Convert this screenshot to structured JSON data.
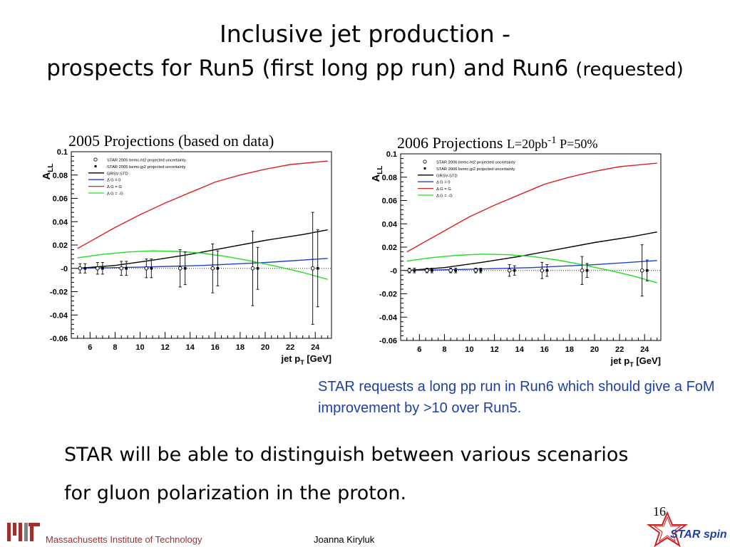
{
  "slide": {
    "title_line1": "Inclusive jet production -",
    "title_line2": "prospects for Run5 (first long pp run) and Run6",
    "title_line2_small": "(requested)",
    "note": "STAR requests a long pp run in Run6 which should give a FoM improvement by >10 over Run5.",
    "conclusion_line1": "STAR will be able to distinguish between various scenarios",
    "conclusion_line2": "for gluon polarization in the proton.",
    "page_number": "16",
    "footer_institute": "Massachusetts Institute of Technology",
    "footer_author": "Joanna Kiryluk",
    "logo_text": "STAR spin",
    "colors": {
      "note": "#1f3fa6",
      "footer_institute": "#a03030",
      "std": "#000000",
      "g0": "#1f3fd6",
      "gplus": "#e02020",
      "gminus": "#20e020"
    }
  },
  "panels": [
    {
      "caption": "2005 Projections (based on data)",
      "caption_sub": ""
    },
    {
      "caption": "2006 Projections",
      "caption_sub": "L=20pb-1 P=50%"
    }
  ],
  "chart_data": [
    {
      "type": "line",
      "title": "2005 Projections (based on data)",
      "ylabel": "A_LL",
      "xlabel": "jet p_T [GeV]",
      "xlim": [
        4.5,
        25.3
      ],
      "ylim": [
        -0.06,
        0.1
      ],
      "xticks": [
        6,
        8,
        10,
        12,
        14,
        16,
        18,
        20,
        22,
        24
      ],
      "yticks": [
        -0.06,
        -0.04,
        -0.02,
        0,
        0.02,
        0.04,
        0.06,
        0.08,
        0.1
      ],
      "ytick_labels": [
        "-0.06",
        "-0.04",
        "-0.02",
        "-0",
        "0.02",
        "0.04",
        "0.06",
        "0.08",
        "0.1"
      ],
      "legend": {
        "placement": "top-left",
        "entries": [
          {
            "label": "STAR 2005 bemc-ht2 projected uncertainty",
            "kind": "open-marker"
          },
          {
            "label": "STAR 2005 bemc-jp2 projected uncertainty",
            "kind": "filled-marker"
          },
          {
            "label": "GRSV-STD",
            "kind": "line",
            "color": "#000000"
          },
          {
            "label": "Δ G = 0",
            "kind": "line",
            "color": "#1f3fd6"
          },
          {
            "label": "Δ G = G",
            "kind": "line",
            "color": "#e02020"
          },
          {
            "label": "Δ G = -G",
            "kind": "line",
            "color": "#20e020"
          }
        ]
      },
      "series": [
        {
          "name": "GRSV-STD",
          "color": "#000000",
          "x": [
            5,
            8,
            11,
            14,
            17,
            20,
            23,
            25
          ],
          "y": [
            0.0,
            0.0025,
            0.007,
            0.012,
            0.018,
            0.024,
            0.029,
            0.033
          ]
        },
        {
          "name": "Δ G = 0",
          "color": "#1f3fd6",
          "x": [
            5,
            10,
            15,
            20,
            25
          ],
          "y": [
            0.0,
            0.001,
            0.0025,
            0.005,
            0.0085
          ]
        },
        {
          "name": "Δ G = G",
          "color": "#e02020",
          "x": [
            5,
            8,
            10,
            12,
            14,
            16,
            18,
            20,
            22,
            25
          ],
          "y": [
            0.017,
            0.035,
            0.046,
            0.056,
            0.065,
            0.074,
            0.08,
            0.085,
            0.089,
            0.092
          ]
        },
        {
          "name": "Δ G = -G",
          "color": "#20e020",
          "x": [
            5,
            7,
            9,
            11,
            13,
            15,
            17,
            19,
            21,
            23,
            25
          ],
          "y": [
            0.009,
            0.012,
            0.014,
            0.015,
            0.0145,
            0.013,
            0.01,
            0.006,
            0.0015,
            -0.0035,
            -0.0095
          ]
        }
      ],
      "points_open": [
        {
          "x": 5.2,
          "y": 0.0,
          "err": 0.004
        },
        {
          "x": 6.6,
          "y": 0.0,
          "err": 0.005
        },
        {
          "x": 8.5,
          "y": 0.0,
          "err": 0.006
        },
        {
          "x": 10.5,
          "y": 0.0,
          "err": 0.008
        },
        {
          "x": 13.2,
          "y": 0.0,
          "err": 0.016
        },
        {
          "x": 15.8,
          "y": 0.0,
          "err": 0.021
        },
        {
          "x": 19.0,
          "y": 0.0,
          "err": 0.032
        },
        {
          "x": 23.8,
          "y": 0.0,
          "err": 0.048
        }
      ],
      "points_filled": [
        {
          "x": 5.6,
          "y": 0.0,
          "err": 0.004
        },
        {
          "x": 7.0,
          "y": 0.0,
          "err": 0.005
        },
        {
          "x": 8.9,
          "y": 0.0,
          "err": 0.006
        },
        {
          "x": 10.9,
          "y": 0.0,
          "err": 0.008
        },
        {
          "x": 13.6,
          "y": 0.0,
          "err": 0.014
        },
        {
          "x": 16.2,
          "y": 0.0,
          "err": 0.015
        },
        {
          "x": 19.4,
          "y": 0.0,
          "err": 0.018
        },
        {
          "x": 24.2,
          "y": 0.0,
          "err": 0.033
        }
      ],
      "zero_line": "dotted"
    },
    {
      "type": "line",
      "title": "2006 Projections",
      "ylabel": "A_LL",
      "xlabel": "jet p_T [GeV]",
      "xlim": [
        4.5,
        25.3
      ],
      "ylim": [
        -0.06,
        0.1
      ],
      "xticks": [
        6,
        8,
        10,
        12,
        14,
        16,
        18,
        20,
        22,
        24
      ],
      "yticks": [
        -0.06,
        -0.04,
        -0.02,
        0,
        0.02,
        0.04,
        0.06,
        0.08,
        0.1
      ],
      "ytick_labels": [
        "-0.06",
        "-0.04",
        "-0.02",
        "-0",
        "0.02",
        "0.04",
        "0.06",
        "0.08",
        "0.1"
      ],
      "legend": {
        "placement": "top-left",
        "entries": [
          {
            "label": "STAR 2006 bemc-ht2 projected uncertainty",
            "kind": "open-marker"
          },
          {
            "label": "STAR 2006 bemc-jp2 projected uncertainty",
            "kind": "filled-marker"
          },
          {
            "label": "GRSV-STD",
            "kind": "line",
            "color": "#000000"
          },
          {
            "label": "Δ G = 0",
            "kind": "line",
            "color": "#1f3fd6"
          },
          {
            "label": "Δ G = G",
            "kind": "line",
            "color": "#e02020"
          },
          {
            "label": "Δ G = -G",
            "kind": "line",
            "color": "#20e020"
          }
        ]
      },
      "series": [
        {
          "name": "GRSV-STD",
          "color": "#000000",
          "x": [
            5,
            8,
            11,
            14,
            17,
            20,
            23,
            25
          ],
          "y": [
            0.0,
            0.0025,
            0.007,
            0.012,
            0.018,
            0.024,
            0.029,
            0.033
          ]
        },
        {
          "name": "Δ G = 0",
          "color": "#1f3fd6",
          "x": [
            5,
            10,
            15,
            20,
            25
          ],
          "y": [
            0.0,
            0.001,
            0.0025,
            0.005,
            0.0085
          ]
        },
        {
          "name": "Δ G = G",
          "color": "#e02020",
          "x": [
            5,
            8,
            10,
            12,
            14,
            16,
            18,
            20,
            22,
            25
          ],
          "y": [
            0.016,
            0.034,
            0.046,
            0.056,
            0.065,
            0.074,
            0.08,
            0.085,
            0.089,
            0.092
          ]
        },
        {
          "name": "Δ G = -G",
          "color": "#20e020",
          "x": [
            5,
            7,
            9,
            11,
            13,
            15,
            17,
            19,
            21,
            23,
            25
          ],
          "y": [
            0.008,
            0.011,
            0.013,
            0.014,
            0.0135,
            0.012,
            0.009,
            0.005,
            0.0005,
            -0.0045,
            -0.0105
          ]
        }
      ],
      "points_open": [
        {
          "x": 5.2,
          "y": 0.0,
          "err": 0.002
        },
        {
          "x": 6.6,
          "y": 0.0,
          "err": 0.002
        },
        {
          "x": 8.5,
          "y": 0.0,
          "err": 0.002
        },
        {
          "x": 10.5,
          "y": 0.0,
          "err": 0.002
        },
        {
          "x": 13.2,
          "y": 0.0,
          "err": 0.005
        },
        {
          "x": 15.8,
          "y": 0.0,
          "err": 0.007
        },
        {
          "x": 19.0,
          "y": 0.0,
          "err": 0.012
        },
        {
          "x": 23.8,
          "y": 0.0,
          "err": 0.022
        }
      ],
      "points_filled": [
        {
          "x": 5.6,
          "y": 0.0,
          "err": 0.002
        },
        {
          "x": 7.0,
          "y": 0.0,
          "err": 0.002
        },
        {
          "x": 8.9,
          "y": 0.0,
          "err": 0.002
        },
        {
          "x": 10.9,
          "y": 0.0,
          "err": 0.002
        },
        {
          "x": 13.6,
          "y": 0.0,
          "err": 0.004
        },
        {
          "x": 16.2,
          "y": 0.0,
          "err": 0.005
        },
        {
          "x": 19.4,
          "y": 0.0,
          "err": 0.006
        },
        {
          "x": 24.2,
          "y": 0.0,
          "err": 0.009
        }
      ],
      "zero_line": "dotted"
    }
  ]
}
